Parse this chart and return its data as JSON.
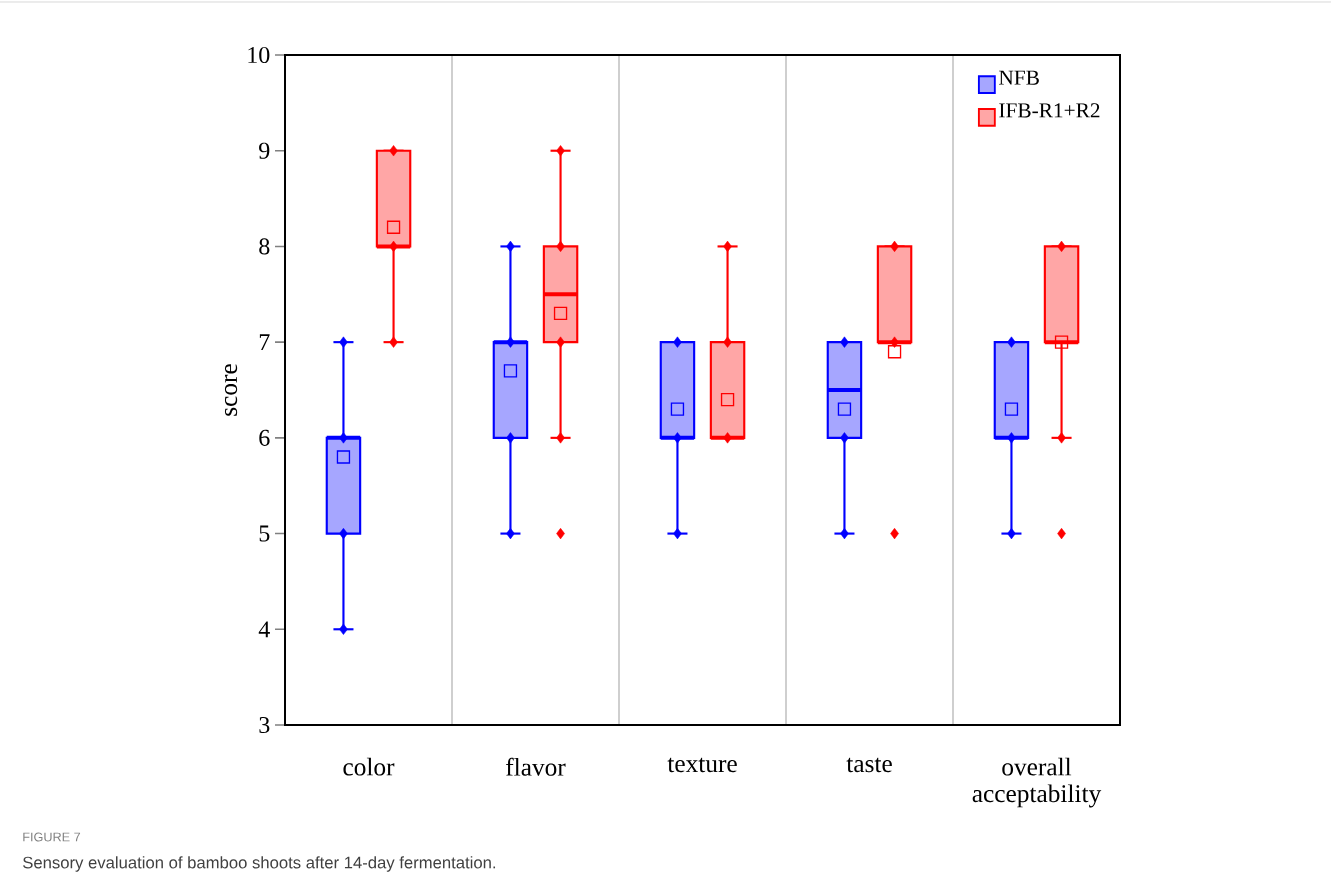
{
  "chart_data": {
    "type": "box",
    "ylabel": "score",
    "categories": [
      "color",
      "flavor",
      "texture",
      "taste",
      "overall acceptability"
    ],
    "ylim": [
      3,
      10
    ],
    "yticks": [
      3,
      4,
      5,
      6,
      7,
      8,
      9,
      10
    ],
    "grid": "x",
    "legend": "top right",
    "marker": "diamond",
    "series": [
      {
        "name": "NFB",
        "color": "#0000ff",
        "boxes": [
          {
            "low": 4,
            "q1": 5,
            "median": 6,
            "q3": 6,
            "high": 7,
            "mean": 5.8
          },
          {
            "low": 5,
            "q1": 6,
            "median": 7,
            "q3": 7,
            "high": 8,
            "mean": 6.7
          },
          {
            "low": 5,
            "q1": 6,
            "median": 6,
            "q3": 7,
            "high": 7,
            "mean": 6.3
          },
          {
            "low": 5,
            "q1": 6,
            "median": 6.5,
            "q3": 7,
            "high": 7,
            "mean": 6.3
          },
          {
            "low": 5,
            "q1": 6,
            "median": 6,
            "q3": 7,
            "high": 7,
            "mean": 6.3
          }
        ]
      },
      {
        "name": "IFB-R1+R2",
        "color": "#ff0000",
        "boxes": [
          {
            "low": 7,
            "q1": 8,
            "median": 8,
            "q3": 9,
            "high": 9,
            "mean": 8.2
          },
          {
            "low": 6,
            "q1": 7,
            "median": 7.5,
            "q3": 8,
            "high": 9,
            "mean": 7.3,
            "outliers": [
              5
            ]
          },
          {
            "low": 6,
            "q1": 6,
            "median": 6,
            "q3": 7,
            "high": 8,
            "mean": 6.4
          },
          {
            "low": 7,
            "q1": 7,
            "median": 7,
            "q3": 8,
            "high": 8,
            "mean": 6.9,
            "outliers": [
              5
            ]
          },
          {
            "low": 6,
            "q1": 7,
            "median": 7,
            "q3": 8,
            "high": 8,
            "mean": 7.0,
            "outliers": [
              5
            ]
          }
        ]
      },
      {
        "type": "scatter",
        "color": "#0000ff",
        "x": [
          "color",
          "color",
          "color",
          "color",
          "flavor",
          "flavor",
          "flavor",
          "flavor",
          "texture",
          "texture",
          "texture",
          "taste",
          "taste",
          "taste",
          "overall acceptability",
          "overall acceptability",
          "overall acceptability"
        ],
        "values": [
          4,
          5,
          6,
          7,
          5,
          6,
          7,
          8,
          5,
          6,
          7,
          5,
          6,
          7,
          5,
          6,
          7
        ]
      },
      {
        "type": "scatter",
        "color": "#ff0000",
        "x": [
          "color",
          "color",
          "color",
          "flavor",
          "flavor",
          "flavor",
          "flavor",
          "texture",
          "texture",
          "texture",
          "taste",
          "taste",
          "overall acceptability",
          "overall acceptability"
        ],
        "values": [
          7,
          8,
          9,
          6,
          7,
          8,
          9,
          6,
          7,
          8,
          7,
          8,
          6,
          8
        ]
      }
    ],
    "annotations": [
      "FIGURE 7",
      "Sensory evaluation of bamboo shoots after 14-day fermentation."
    ]
  }
}
